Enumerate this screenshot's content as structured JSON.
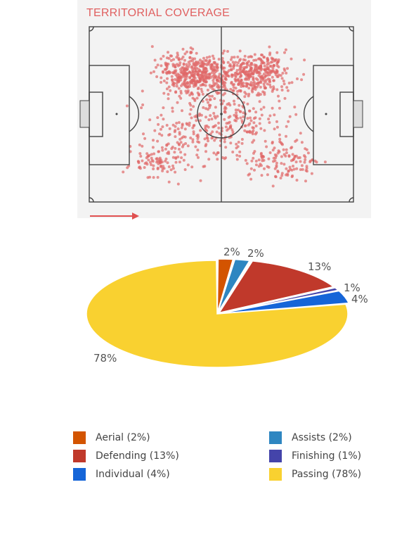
{
  "pitch": {
    "title": "TERRITORIAL COVERAGE",
    "dot_color": "#e06666",
    "line_color": "#444444",
    "arrow_color": "#e05050"
  },
  "chart_data": {
    "type": "pie",
    "slices": [
      {
        "name": "Aerial (2%)",
        "short": "2%",
        "value": 2,
        "color": "#d35400"
      },
      {
        "name": "Assists (2%)",
        "short": "2%",
        "value": 2,
        "color": "#2e86c1"
      },
      {
        "name": "Defending (13%)",
        "short": "13%",
        "value": 13,
        "color": "#c0392b"
      },
      {
        "name": "Finishing (1%)",
        "short": "1%",
        "value": 1,
        "color": "#4444aa"
      },
      {
        "name": "Individual (4%)",
        "short": "4%",
        "value": 4,
        "color": "#1565d8"
      },
      {
        "name": "Passing (78%)",
        "short": "78%",
        "value": 78,
        "color": "#f9d130"
      }
    ],
    "legend_position": "bottom"
  }
}
